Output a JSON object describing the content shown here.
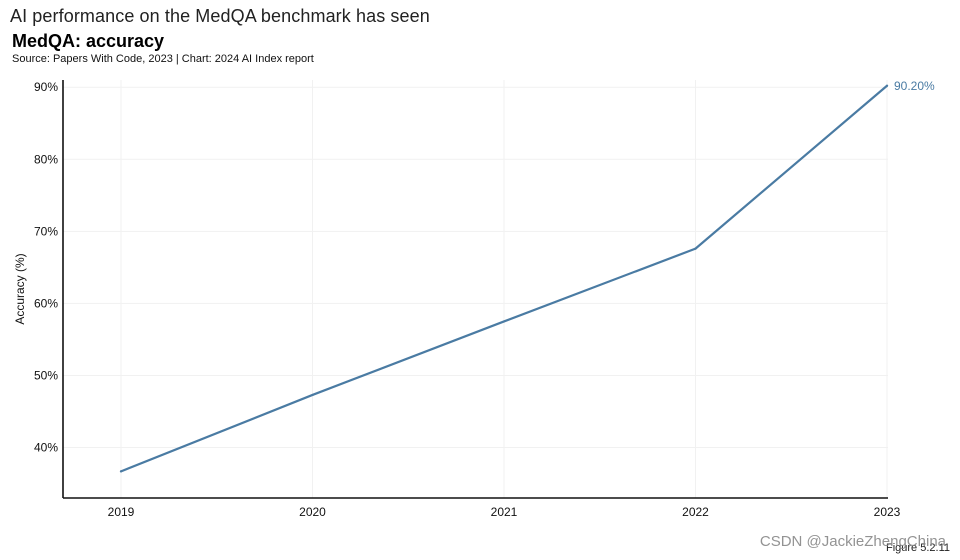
{
  "headline": "AI performance on the MedQA benchmark has seen",
  "chart_data": {
    "type": "line",
    "title": "MedQA: accuracy",
    "source": "Source: Papers With Code, 2023 | Chart: 2024 AI Index report",
    "xlabel": "",
    "ylabel": "Accuracy (%)",
    "categories": [
      "2019",
      "2020",
      "2021",
      "2022",
      "2023"
    ],
    "series": [
      {
        "name": "MedQA accuracy",
        "values": [
          36.7,
          47.3,
          57.5,
          67.6,
          90.2
        ],
        "color": "#4a7ba3"
      }
    ],
    "ylim": [
      33,
      91
    ],
    "yticks": [
      40,
      50,
      60,
      70,
      80,
      90
    ],
    "ytick_labels": [
      "40%",
      "50%",
      "60%",
      "70%",
      "80%",
      "90%"
    ],
    "end_label": "90.20%",
    "grid": true
  },
  "figure_ref": "Figure 5.2.11",
  "watermark": "CSDN @JackieZhengChina"
}
